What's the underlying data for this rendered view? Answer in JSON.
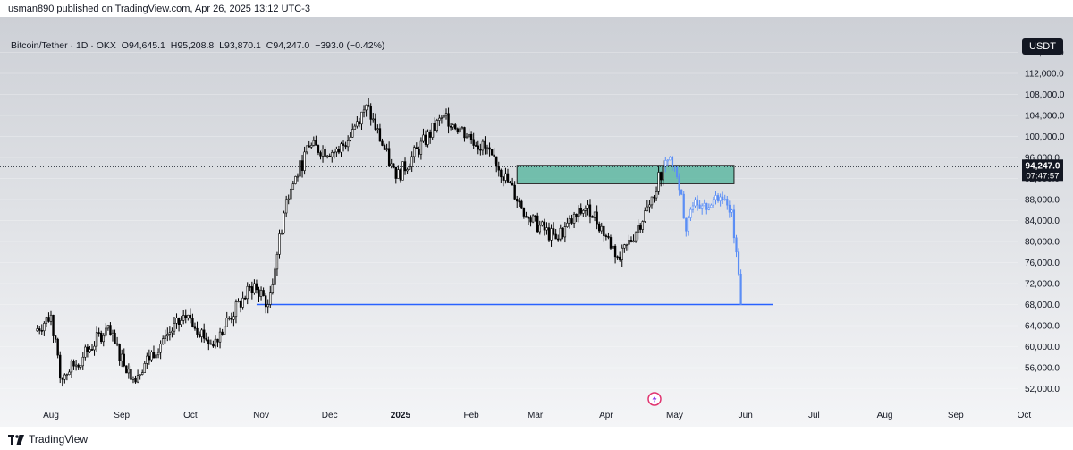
{
  "publisher": "usman890 published on TradingView.com, Apr 26, 2025 13:12 UTC-3",
  "legend": {
    "symbol": "Bitcoin/Tether · 1D · OKX",
    "open": "O94,645.1",
    "high": "H95,208.8",
    "low": "L93,870.1",
    "close": "C94,247.0",
    "change": "−393.0 (−0.42%)"
  },
  "currency_button": "USDT",
  "price_label": {
    "price": "94,247.0",
    "countdown": "07:47:57"
  },
  "brand": "TradingView",
  "colors": {
    "background_top": "#cdd0d6",
    "background_bottom": "#f4f5f7",
    "candle": "#000000",
    "projection": "#5b8ef5",
    "zone_fill": "#5fb8a2",
    "support_line": "#2962ff"
  },
  "chart_data": {
    "type": "candlestick",
    "ylim": [
      48000,
      120000
    ],
    "y_ticks": [
      "116,000.0",
      "112,000.0",
      "108,000.0",
      "104,000.0",
      "100,000.0",
      "96,000.0",
      "92,000.0",
      "88,000.0",
      "84,000.0",
      "80,000.0",
      "76,000.0",
      "72,000.0",
      "68,000.0",
      "64,000.0",
      "60,000.0",
      "56,000.0",
      "52,000.0"
    ],
    "x_ticks": [
      "Aug",
      "Sep",
      "Oct",
      "Nov",
      "Dec",
      "2025",
      "Feb",
      "Mar",
      "Apr",
      "May",
      "Jun",
      "Jul",
      "Aug",
      "Sep",
      "Oct"
    ],
    "last_price": 94247,
    "series": [
      {
        "period": "2024-07-25",
        "close": 63000
      },
      {
        "period": "2024-08-01",
        "close": 66000
      },
      {
        "period": "2024-08-05",
        "close": 54000
      },
      {
        "period": "2024-08-15",
        "close": 58000
      },
      {
        "period": "2024-08-25",
        "close": 63500
      },
      {
        "period": "2024-09-06",
        "close": 54000
      },
      {
        "period": "2024-09-20",
        "close": 62000
      },
      {
        "period": "2024-09-30",
        "close": 66000
      },
      {
        "period": "2024-10-10",
        "close": 60500
      },
      {
        "period": "2024-10-29",
        "close": 72000
      },
      {
        "period": "2024-11-04",
        "close": 68000
      },
      {
        "period": "2024-11-12",
        "close": 88000
      },
      {
        "period": "2024-11-22",
        "close": 98000
      },
      {
        "period": "2024-12-05",
        "close": 97000
      },
      {
        "period": "2024-12-17",
        "close": 106000
      },
      {
        "period": "2024-12-30",
        "close": 92000
      },
      {
        "period": "2025-01-20",
        "close": 104000
      },
      {
        "period": "2025-02-10",
        "close": 96500
      },
      {
        "period": "2025-02-26",
        "close": 84500
      },
      {
        "period": "2025-03-10",
        "close": 80500
      },
      {
        "period": "2025-03-24",
        "close": 87000
      },
      {
        "period": "2025-04-07",
        "close": 76500
      },
      {
        "period": "2025-04-20",
        "close": 87000
      },
      {
        "period": "2025-04-26",
        "close": 94247
      }
    ],
    "resistance_zone": {
      "from": "2025-02-21",
      "to": "2025-05-27",
      "low": 91000,
      "high": 94500
    },
    "support_line": {
      "from": "2024-10-30",
      "to": "2025-06-13",
      "price": 68000
    },
    "projection": [
      {
        "period": "2025-04-26",
        "close": 94247
      },
      {
        "period": "2025-04-29",
        "close": 96000
      },
      {
        "period": "2025-05-04",
        "close": 89000
      },
      {
        "period": "2025-05-06",
        "close": 82000
      },
      {
        "period": "2025-05-10",
        "close": 88000
      },
      {
        "period": "2025-05-16",
        "close": 86500
      },
      {
        "period": "2025-05-21",
        "close": 88500
      },
      {
        "period": "2025-05-26",
        "close": 86000
      },
      {
        "period": "2025-05-28",
        "close": 78000
      },
      {
        "period": "2025-05-30",
        "close": 68000
      }
    ]
  }
}
